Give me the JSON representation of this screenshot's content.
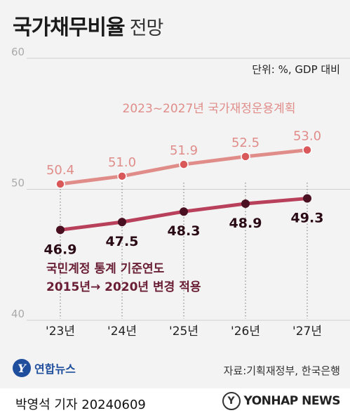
{
  "header": {
    "title": "국가채무비율",
    "subtitle": "전망",
    "unit": "단위: %, GDP 대비"
  },
  "chart_data": {
    "type": "line",
    "categories": [
      "'23년",
      "'24년",
      "'25년",
      "'26년",
      "'27년"
    ],
    "ylim": [
      40,
      60
    ],
    "yticks": [
      "60",
      "50",
      "40"
    ],
    "grid": false,
    "series": [
      {
        "name": "2023~2027년 국가재정운용계획",
        "values": [
          50.4,
          51.0,
          51.9,
          52.5,
          53.0
        ],
        "labels": [
          "50.4",
          "51.0",
          "51.9",
          "52.5",
          "53.0"
        ],
        "color": "#e08d8a"
      },
      {
        "name": "국민계정 통계 기준연도 2015년→ 2020년 변경 적용",
        "values": [
          46.9,
          47.5,
          48.3,
          48.9,
          49.3
        ],
        "labels": [
          "46.9",
          "47.5",
          "48.3",
          "48.9",
          "49.3"
        ],
        "color": "#b8405a",
        "marker_color": "#4a1022"
      }
    ],
    "annotation_lines": [
      "국민계정 통계 기준연도",
      "2015년→ 2020년 변경 적용"
    ]
  },
  "footer": {
    "logo_mark": "Y",
    "logo_text": "연합뉴스",
    "source": "자료:기획재정부, 한국은행",
    "reporter": "박영석 기자  20240609",
    "agency_mark": "Y",
    "agency_text": "YONHAP NEWS"
  }
}
